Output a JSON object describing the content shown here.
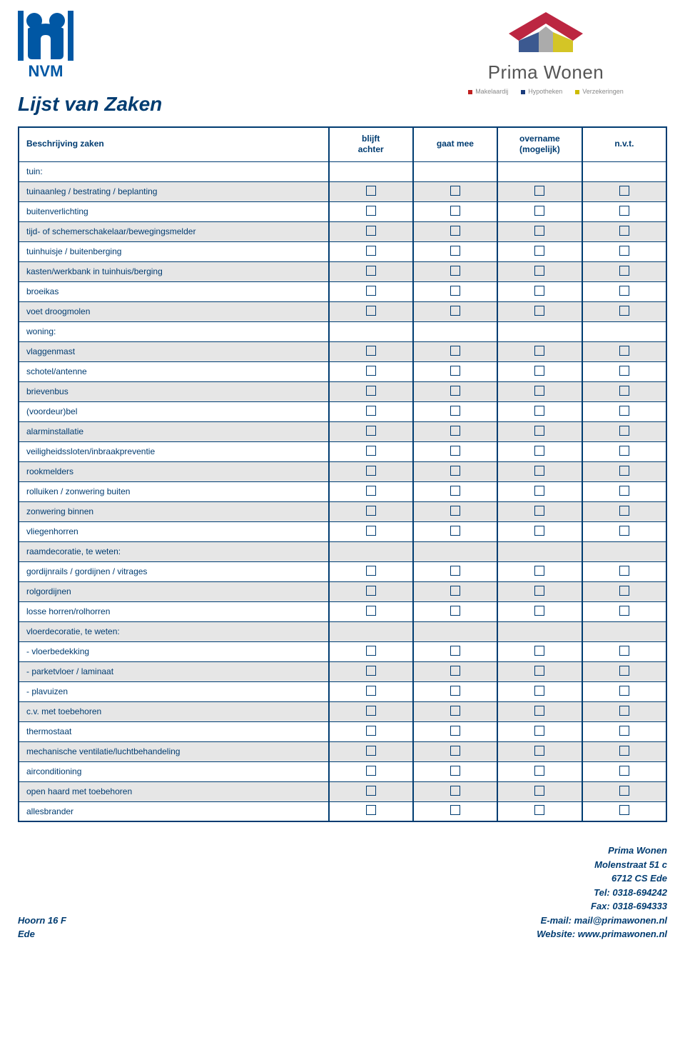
{
  "header": {
    "nvm_logo_text": "NVM",
    "prima_wonen": {
      "title_light": "Prima",
      "title_med": "Wonen",
      "tag1": "Makelaardij",
      "tag2": "Hypotheken",
      "tag3": "Verzekeringen"
    }
  },
  "page_title": "Lijst van Zaken",
  "table": {
    "headers": {
      "col0": "Beschrijving zaken",
      "col1_l1": "blijft",
      "col1_l2": "achter",
      "col2": "gaat mee",
      "col3_l1": "overname",
      "col3_l2": "(mogelijk)",
      "col4": "n.v.t."
    },
    "rows": [
      {
        "label": "tuin:",
        "section": true
      },
      {
        "label": "tuinaanleg / bestrating / beplanting",
        "zebra": true,
        "checks": true
      },
      {
        "label": "buitenverlichting",
        "zebra": false,
        "checks": true
      },
      {
        "label": "tijd- of schemerschakelaar/bewegingsmelder",
        "zebra": true,
        "checks": true
      },
      {
        "label": "tuinhuisje / buitenberging",
        "zebra": false,
        "checks": true
      },
      {
        "label": "kasten/werkbank in tuinhuis/berging",
        "zebra": true,
        "checks": true
      },
      {
        "label": "broeikas",
        "zebra": false,
        "checks": true
      },
      {
        "label": "voet droogmolen",
        "zebra": true,
        "checks": true
      },
      {
        "label": "woning:",
        "section": true
      },
      {
        "label": "vlaggenmast",
        "zebra": true,
        "checks": true
      },
      {
        "label": "schotel/antenne",
        "zebra": false,
        "checks": true
      },
      {
        "label": "brievenbus",
        "zebra": true,
        "checks": true
      },
      {
        "label": "(voordeur)bel",
        "zebra": false,
        "checks": true
      },
      {
        "label": "alarminstallatie",
        "zebra": true,
        "checks": true
      },
      {
        "label": "veiligheidssloten/inbraakpreventie",
        "zebra": false,
        "checks": true
      },
      {
        "label": "rookmelders",
        "zebra": true,
        "checks": true
      },
      {
        "label": "rolluiken / zonwering buiten",
        "zebra": false,
        "checks": true
      },
      {
        "label": "zonwering binnen",
        "zebra": true,
        "checks": true
      },
      {
        "label": "vliegenhorren",
        "zebra": false,
        "checks": true
      },
      {
        "label": "raamdecoratie, te weten:",
        "section": true,
        "zebra": true
      },
      {
        "label": "gordijnrails / gordijnen / vitrages",
        "zebra": false,
        "checks": true
      },
      {
        "label": "rolgordijnen",
        "zebra": true,
        "checks": true
      },
      {
        "label": "losse horren/rolhorren",
        "zebra": false,
        "checks": true
      },
      {
        "label": "vloerdecoratie, te weten:",
        "section": true,
        "zebra": true
      },
      {
        "label": "- vloerbedekking",
        "zebra": false,
        "checks": true
      },
      {
        "label": "- parketvloer / laminaat",
        "zebra": true,
        "checks": true
      },
      {
        "label": "- plavuizen",
        "zebra": false,
        "checks": true
      },
      {
        "label": "c.v. met toebehoren",
        "zebra": true,
        "checks": true
      },
      {
        "label": "thermostaat",
        "zebra": false,
        "checks": true
      },
      {
        "label": "mechanische ventilatie/luchtbehandeling",
        "zebra": true,
        "checks": true
      },
      {
        "label": "airconditioning",
        "zebra": false,
        "checks": true
      },
      {
        "label": "open haard met toebehoren",
        "zebra": true,
        "checks": true
      },
      {
        "label": "allesbrander",
        "zebra": false,
        "checks": true
      }
    ]
  },
  "footer": {
    "left_l1": "Hoorn 16 F",
    "left_l2": "Ede",
    "right_l1": "Prima Wonen",
    "right_l2": "Molenstraat 51 c",
    "right_l3": "6712 CS Ede",
    "right_l4": "Tel: 0318-694242",
    "right_l5": "Fax: 0318-694333",
    "right_l6": "E-mail: mail@primawonen.nl",
    "right_l7": "Website: www.primawonen.nl"
  },
  "colors": {
    "primary": "#003c71",
    "zebra": "#e6e6e6",
    "nvm_blue": "#0057a4"
  }
}
